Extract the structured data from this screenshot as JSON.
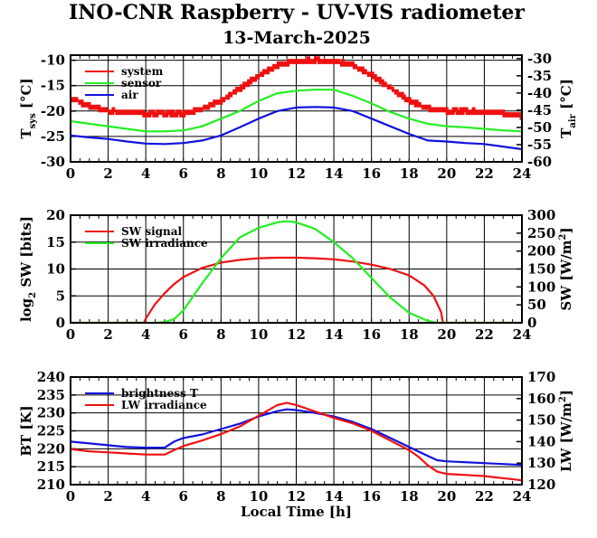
{
  "title": "INO-CNR Raspberry - UV-VIS radiometer",
  "subtitle": "13-March-2025",
  "colors": {
    "red": "#ee1111",
    "green": "#22ee22",
    "blue": "#1111dd"
  },
  "chart_data": [
    {
      "type": "line",
      "ylabel_main": "T",
      "ylabel_sub": "sys",
      "ylabel_unit": "[°C]",
      "ylabel2_main": "T",
      "ylabel2_sub": "air",
      "ylabel2_unit": "[°C]",
      "xlim": [
        0,
        24
      ],
      "ylim": [
        -30,
        -9
      ],
      "ylim2": [
        -60,
        -29
      ],
      "xticks": [
        "0",
        "2",
        "4",
        "6",
        "8",
        "10",
        "12",
        "14",
        "16",
        "18",
        "20",
        "22",
        "24"
      ],
      "yticks": [
        "-10",
        "-15",
        "-20",
        "-25",
        "-30"
      ],
      "yticks_vals": [
        -10,
        -15,
        -20,
        -25,
        -30
      ],
      "yticks2": [
        "-30",
        "-35",
        "-40",
        "-45",
        "-50",
        "-55",
        "-60"
      ],
      "yticks2_vals": [
        -30,
        -35,
        -40,
        -45,
        -50,
        -55,
        -60
      ],
      "grid": true,
      "legend": "top-left",
      "series": [
        {
          "name": "system",
          "color": "red",
          "axis": "left",
          "style": "step",
          "x": [
            0,
            1,
            2,
            3,
            4,
            5,
            6,
            7,
            8,
            9,
            10,
            11,
            12,
            13,
            14,
            15,
            16,
            17,
            18,
            19,
            20,
            21,
            22,
            23,
            24
          ],
          "y": [
            -17.5,
            -19,
            -20,
            -20.3,
            -20.5,
            -20.5,
            -20.5,
            -19.5,
            -18,
            -15.5,
            -13,
            -11,
            -10.2,
            -10,
            -10.2,
            -11,
            -13,
            -15.5,
            -18,
            -19.5,
            -20,
            -20,
            -20.2,
            -20.5,
            -21
          ]
        },
        {
          "name": "sensor",
          "color": "green",
          "axis": "left",
          "x": [
            0,
            1,
            2,
            3,
            4,
            5,
            6,
            7,
            8,
            9,
            10,
            11,
            12,
            13,
            14,
            15,
            16,
            17,
            18,
            19,
            20,
            21,
            22,
            23,
            24
          ],
          "y": [
            -22,
            -22.5,
            -23,
            -23.5,
            -24,
            -24,
            -23.8,
            -23,
            -21.5,
            -20,
            -18,
            -16.5,
            -16,
            -15.8,
            -15.8,
            -17,
            -18.5,
            -20.2,
            -21.5,
            -22.5,
            -23,
            -23.2,
            -23.5,
            -23.8,
            -24
          ]
        },
        {
          "name": "air",
          "color": "blue",
          "axis": "left",
          "x": [
            0,
            1,
            2,
            3,
            4,
            5,
            6,
            7,
            8,
            9,
            10,
            11,
            12,
            13,
            14,
            15,
            16,
            17,
            18,
            19,
            20,
            21,
            22,
            23,
            24
          ],
          "y": [
            -24.8,
            -25.2,
            -25.5,
            -26,
            -26.4,
            -26.5,
            -26.3,
            -25.8,
            -24.8,
            -23.2,
            -21.5,
            -20,
            -19.3,
            -19.2,
            -19.3,
            -20,
            -21.5,
            -23,
            -24.5,
            -25.8,
            -26,
            -26.3,
            -26.5,
            -27,
            -27.5
          ]
        }
      ]
    },
    {
      "type": "line",
      "ylabel_main": "log",
      "ylabel_sub": "2",
      "ylabel_unit": "SW [bits]",
      "ylabel2_main": "SW [W/m",
      "ylabel2_sup": "2",
      "ylabel2_unit": "]",
      "xlim": [
        0,
        24
      ],
      "ylim": [
        0,
        20
      ],
      "ylim2": [
        0,
        300
      ],
      "xticks": [
        "0",
        "2",
        "4",
        "6",
        "8",
        "10",
        "12",
        "14",
        "16",
        "18",
        "20",
        "22",
        "24"
      ],
      "yticks": [
        "20",
        "15",
        "10",
        "5",
        "0"
      ],
      "yticks_vals": [
        20,
        15,
        10,
        5,
        0
      ],
      "yticks2": [
        "300",
        "250",
        "200",
        "150",
        "100",
        "50",
        "0"
      ],
      "yticks2_vals": [
        300,
        250,
        200,
        150,
        100,
        50,
        0
      ],
      "grid": true,
      "legend": "top-left",
      "series": [
        {
          "name": "SW signal",
          "color": "red",
          "axis": "left",
          "x": [
            0,
            3.9,
            4.0,
            4.5,
            5,
            5.5,
            6,
            7,
            8,
            9,
            10,
            11,
            12,
            13,
            14,
            15,
            16,
            17,
            18,
            18.8,
            19.3,
            19.7,
            19.8,
            24
          ],
          "y": [
            0,
            0,
            0.8,
            3.5,
            5.5,
            7.2,
            8.5,
            10.2,
            11.2,
            11.7,
            12,
            12.1,
            12.1,
            12,
            11.8,
            11.4,
            10.8,
            10,
            8.8,
            7,
            5,
            2,
            0,
            0
          ]
        },
        {
          "name": "SW irradiance",
          "color": "green",
          "axis": "right",
          "x": [
            0,
            4.5,
            5,
            5.5,
            6,
            7,
            8,
            9,
            10,
            11,
            11.5,
            12,
            13,
            14,
            15,
            16,
            17,
            18,
            19,
            19.5,
            24
          ],
          "y": [
            0,
            0,
            2,
            10,
            35,
            110,
            180,
            238,
            265,
            280,
            283,
            280,
            262,
            225,
            180,
            125,
            70,
            28,
            5,
            0,
            0
          ]
        }
      ]
    },
    {
      "type": "line",
      "ylabel_main": "BT [K]",
      "ylabel2_main": "LW [W/m",
      "ylabel2_sup": "2",
      "ylabel2_unit": "]",
      "xlabel": "Local Time [h]",
      "xlim": [
        0,
        24
      ],
      "ylim": [
        210,
        240
      ],
      "ylim2": [
        120,
        170
      ],
      "xticks": [
        "0",
        "2",
        "4",
        "6",
        "8",
        "10",
        "12",
        "14",
        "16",
        "18",
        "20",
        "22",
        "24"
      ],
      "yticks": [
        "240",
        "235",
        "230",
        "225",
        "220",
        "215",
        "210"
      ],
      "yticks_vals": [
        240,
        235,
        230,
        225,
        220,
        215,
        210
      ],
      "yticks2": [
        "170",
        "160",
        "150",
        "140",
        "130",
        "120"
      ],
      "yticks2_vals": [
        170,
        160,
        150,
        140,
        130,
        120
      ],
      "grid": true,
      "legend": "top-left",
      "series": [
        {
          "name": "brightness T",
          "color": "blue",
          "axis": "left",
          "x": [
            0,
            1,
            2,
            3,
            4,
            5,
            5.5,
            6,
            7,
            8,
            9,
            10,
            11,
            11.5,
            12,
            13,
            14,
            15,
            16,
            17,
            18,
            19,
            19.5,
            20,
            22,
            24
          ],
          "y": [
            222,
            221.5,
            221,
            220.5,
            220.3,
            220.3,
            222,
            223,
            224,
            225.5,
            227,
            229,
            230.5,
            231,
            230.8,
            230,
            229,
            227.5,
            225.5,
            223,
            220.5,
            218,
            216.8,
            216.5,
            216,
            215.5
          ]
        },
        {
          "name": "LW irradiance",
          "color": "red",
          "axis": "right",
          "x": [
            0,
            1,
            2,
            3,
            4,
            5,
            5.5,
            6,
            7,
            8,
            9,
            10,
            11,
            11.5,
            12,
            13,
            14,
            15,
            16,
            17,
            18,
            18.5,
            19,
            19.5,
            20,
            22,
            24
          ],
          "y": [
            136.5,
            135.5,
            135,
            134.5,
            134,
            134,
            136,
            138,
            140.5,
            143.5,
            147,
            152,
            157,
            158,
            157,
            154,
            151,
            148.5,
            145,
            140.5,
            136,
            133,
            129,
            126,
            125,
            124,
            122
          ]
        }
      ]
    }
  ]
}
